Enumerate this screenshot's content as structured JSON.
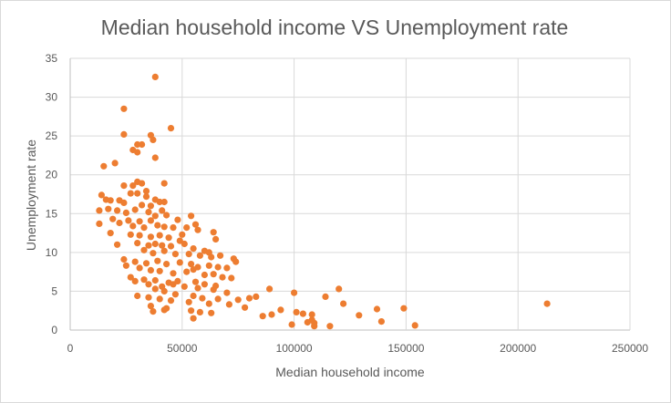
{
  "chart_data": {
    "type": "scatter",
    "title": "Median household income VS Unemployment rate",
    "xlabel": "Median household income",
    "ylabel": "Unemployment rate",
    "xlim": [
      0,
      250000
    ],
    "ylim": [
      0,
      35
    ],
    "xticks": [
      0,
      50000,
      100000,
      150000,
      200000,
      250000
    ],
    "xtick_labels": [
      "0",
      "50000",
      "100000",
      "150000",
      "200000",
      "250000"
    ],
    "yticks": [
      0,
      5,
      10,
      15,
      20,
      25,
      30,
      35
    ],
    "ytick_labels": [
      "0",
      "5",
      "10",
      "15",
      "20",
      "25",
      "30",
      "35"
    ],
    "grid": "major",
    "legend": "none",
    "marker_color": "#ed7d31",
    "points": [
      [
        38000,
        32.6
      ],
      [
        24000,
        28.5
      ],
      [
        45000,
        26.0
      ],
      [
        24000,
        25.2
      ],
      [
        36000,
        25.1
      ],
      [
        37000,
        24.5
      ],
      [
        30000,
        23.9
      ],
      [
        32000,
        23.9
      ],
      [
        28000,
        23.2
      ],
      [
        30000,
        22.9
      ],
      [
        38000,
        22.2
      ],
      [
        15000,
        21.1
      ],
      [
        20000,
        21.5
      ],
      [
        30000,
        19.1
      ],
      [
        32000,
        18.9
      ],
      [
        42000,
        18.9
      ],
      [
        24000,
        18.6
      ],
      [
        28000,
        18.6
      ],
      [
        34000,
        17.9
      ],
      [
        27000,
        17.6
      ],
      [
        34000,
        17.2
      ],
      [
        30000,
        17.6
      ],
      [
        14000,
        17.4
      ],
      [
        16000,
        16.8
      ],
      [
        18000,
        16.7
      ],
      [
        22000,
        16.7
      ],
      [
        24000,
        16.4
      ],
      [
        38000,
        16.8
      ],
      [
        40000,
        16.5
      ],
      [
        42000,
        16.5
      ],
      [
        32000,
        16.1
      ],
      [
        36000,
        16.0
      ],
      [
        29000,
        15.5
      ],
      [
        13000,
        15.4
      ],
      [
        17000,
        15.6
      ],
      [
        21000,
        15.4
      ],
      [
        25000,
        15.1
      ],
      [
        35000,
        15.2
      ],
      [
        41000,
        15.4
      ],
      [
        38000,
        14.7
      ],
      [
        43000,
        14.8
      ],
      [
        54000,
        14.7
      ],
      [
        19000,
        14.3
      ],
      [
        26000,
        14.1
      ],
      [
        31000,
        14.0
      ],
      [
        36000,
        14.1
      ],
      [
        48000,
        14.2
      ],
      [
        13000,
        13.7
      ],
      [
        22000,
        13.8
      ],
      [
        28000,
        13.4
      ],
      [
        33000,
        13.2
      ],
      [
        39000,
        13.5
      ],
      [
        42000,
        13.3
      ],
      [
        46000,
        13.2
      ],
      [
        52000,
        13.2
      ],
      [
        56000,
        13.6
      ],
      [
        57000,
        12.9
      ],
      [
        64000,
        12.6
      ],
      [
        18000,
        12.5
      ],
      [
        27000,
        12.3
      ],
      [
        31000,
        12.2
      ],
      [
        36000,
        12.0
      ],
      [
        40000,
        12.2
      ],
      [
        44000,
        11.9
      ],
      [
        50000,
        12.3
      ],
      [
        65000,
        11.7
      ],
      [
        21000,
        11.0
      ],
      [
        30000,
        11.2
      ],
      [
        35000,
        10.9
      ],
      [
        38000,
        11.1
      ],
      [
        41000,
        10.9
      ],
      [
        45000,
        10.8
      ],
      [
        49000,
        11.5
      ],
      [
        51000,
        11.1
      ],
      [
        55000,
        10.5
      ],
      [
        60000,
        10.2
      ],
      [
        62000,
        10.0
      ],
      [
        33000,
        10.3
      ],
      [
        37000,
        9.9
      ],
      [
        42000,
        10.2
      ],
      [
        47000,
        9.8
      ],
      [
        53000,
        9.8
      ],
      [
        58000,
        9.6
      ],
      [
        63000,
        9.4
      ],
      [
        67000,
        9.6
      ],
      [
        73000,
        9.2
      ],
      [
        74000,
        8.8
      ],
      [
        24000,
        9.1
      ],
      [
        29000,
        8.8
      ],
      [
        34000,
        8.6
      ],
      [
        39000,
        8.9
      ],
      [
        43000,
        8.5
      ],
      [
        49000,
        8.7
      ],
      [
        54000,
        8.5
      ],
      [
        57000,
        8.1
      ],
      [
        62000,
        8.3
      ],
      [
        66000,
        8.1
      ],
      [
        70000,
        8.0
      ],
      [
        25000,
        8.3
      ],
      [
        31000,
        8.0
      ],
      [
        36000,
        7.7
      ],
      [
        40000,
        7.6
      ],
      [
        46000,
        7.3
      ],
      [
        52000,
        7.5
      ],
      [
        55000,
        7.8
      ],
      [
        60000,
        7.1
      ],
      [
        64000,
        7.2
      ],
      [
        68000,
        6.8
      ],
      [
        72000,
        6.7
      ],
      [
        27000,
        6.8
      ],
      [
        33000,
        6.5
      ],
      [
        38000,
        6.4
      ],
      [
        44000,
        6.1
      ],
      [
        48000,
        6.3
      ],
      [
        56000,
        6.2
      ],
      [
        60000,
        5.9
      ],
      [
        65000,
        5.7
      ],
      [
        29000,
        6.3
      ],
      [
        35000,
        5.9
      ],
      [
        41000,
        5.6
      ],
      [
        46000,
        5.9
      ],
      [
        51000,
        5.6
      ],
      [
        57000,
        5.4
      ],
      [
        64000,
        5.2
      ],
      [
        70000,
        4.8
      ],
      [
        38000,
        5.3
      ],
      [
        42000,
        5.0
      ],
      [
        47000,
        4.6
      ],
      [
        55000,
        4.4
      ],
      [
        59000,
        4.1
      ],
      [
        66000,
        4.0
      ],
      [
        75000,
        3.9
      ],
      [
        80000,
        4.1
      ],
      [
        83000,
        4.3
      ],
      [
        30000,
        4.4
      ],
      [
        35000,
        4.2
      ],
      [
        40000,
        4.0
      ],
      [
        45000,
        3.8
      ],
      [
        53000,
        3.6
      ],
      [
        62000,
        3.4
      ],
      [
        71000,
        3.3
      ],
      [
        78000,
        2.9
      ],
      [
        36000,
        3.1
      ],
      [
        43000,
        2.8
      ],
      [
        54000,
        2.5
      ],
      [
        58000,
        2.3
      ],
      [
        63000,
        2.2
      ],
      [
        55000,
        1.5
      ],
      [
        37000,
        2.4
      ],
      [
        42000,
        2.6
      ],
      [
        86000,
        1.8
      ],
      [
        90000,
        2.0
      ],
      [
        94000,
        2.6
      ],
      [
        89000,
        5.3
      ],
      [
        100000,
        4.8
      ],
      [
        101000,
        2.3
      ],
      [
        104000,
        2.1
      ],
      [
        108000,
        2.0
      ],
      [
        108000,
        1.3
      ],
      [
        106000,
        1.0
      ],
      [
        109000,
        0.9
      ],
      [
        99000,
        0.7
      ],
      [
        109000,
        0.5
      ],
      [
        116000,
        0.5
      ],
      [
        114000,
        4.3
      ],
      [
        120000,
        5.3
      ],
      [
        122000,
        3.4
      ],
      [
        129000,
        1.9
      ],
      [
        137000,
        2.7
      ],
      [
        139000,
        1.1
      ],
      [
        149000,
        2.8
      ],
      [
        154000,
        0.6
      ],
      [
        213000,
        3.4
      ]
    ]
  }
}
